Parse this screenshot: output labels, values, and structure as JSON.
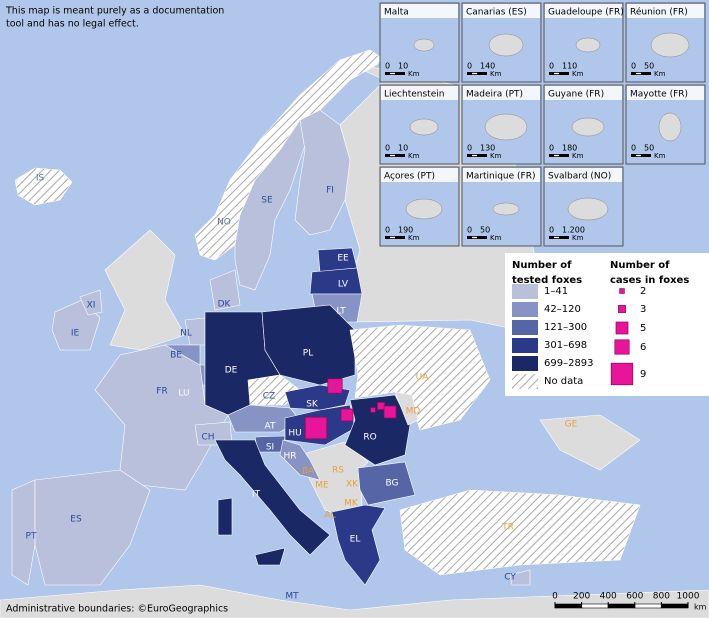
{
  "disclaimer": [
    "This map is meant purely as a documentation",
    "tool and has no legal effect."
  ],
  "attribution": "Administrative boundaries: ©EuroGeographics",
  "insets": [
    {
      "name": "Malta",
      "scale": [
        0,
        10
      ],
      "unit": "Km"
    },
    {
      "name": "Canarias (ES)",
      "scale": [
        0,
        140
      ],
      "unit": "Km"
    },
    {
      "name": "Guadeloupe (FR)",
      "scale": [
        0,
        110
      ],
      "unit": "Km"
    },
    {
      "name": "Réunion (FR)",
      "scale": [
        0,
        50
      ],
      "unit": "Km"
    },
    {
      "name": "Liechtenstein",
      "scale": [
        0,
        10
      ],
      "unit": "Km"
    },
    {
      "name": "Madeira (PT)",
      "scale": [
        0,
        130
      ],
      "unit": "Km"
    },
    {
      "name": "Guyane (FR)",
      "scale": [
        0,
        180
      ],
      "unit": "Km"
    },
    {
      "name": "Mayotte (FR)",
      "scale": [
        0,
        50
      ],
      "unit": "Km"
    },
    {
      "name": "Açores (PT)",
      "scale": [
        0,
        190
      ],
      "unit": "Km"
    },
    {
      "name": "Martinique (FR)",
      "scale": [
        0,
        50
      ],
      "unit": "Km"
    },
    {
      "name": "Svalbard (NO)",
      "scale": [
        0,
        {
          "value": 1200,
          "label": "1.200"
        }
      ],
      "unit": "Km"
    }
  ],
  "legend": {
    "tested_title": [
      "Number of",
      "tested foxes"
    ],
    "tested_classes": [
      {
        "label": "1–41",
        "color": "#b8c0dc"
      },
      {
        "label": "42–120",
        "color": "#8793c4"
      },
      {
        "label": "121–300",
        "color": "#5565a6"
      },
      {
        "label": "301–698",
        "color": "#2b3a88"
      },
      {
        "label": "699–2893",
        "color": "#1b2866"
      },
      {
        "label": "No data",
        "color": "url(#hatch)"
      }
    ],
    "cases_title": [
      "Number of",
      "cases in foxes"
    ],
    "cases": [
      2,
      3,
      5,
      6,
      9
    ]
  },
  "countries": [
    {
      "label": "IS",
      "class": 5
    },
    {
      "label": "NO",
      "class": 5
    },
    {
      "label": "SE",
      "class": 0
    },
    {
      "label": "FI",
      "class": 0
    },
    {
      "label": "EE",
      "class": 3
    },
    {
      "label": "LV",
      "class": 3
    },
    {
      "label": "LT",
      "class": 1
    },
    {
      "label": "DK",
      "class": 0
    },
    {
      "label": "IE",
      "class": 0
    },
    {
      "label": "XI",
      "class": 0
    },
    {
      "label": "NL",
      "class": 0
    },
    {
      "label": "BE",
      "class": 1
    },
    {
      "label": "LU",
      "class": 1
    },
    {
      "label": "DE",
      "class": 4
    },
    {
      "label": "PL",
      "class": 4
    },
    {
      "label": "CZ",
      "class": 5
    },
    {
      "label": "SK",
      "class": 3
    },
    {
      "label": "AT",
      "class": 1
    },
    {
      "label": "HU",
      "class": 3
    },
    {
      "label": "SI",
      "class": 2
    },
    {
      "label": "HR",
      "class": 1
    },
    {
      "label": "RO",
      "class": 4
    },
    {
      "label": "BG",
      "class": 2
    },
    {
      "label": "FR",
      "class": 0
    },
    {
      "label": "CH",
      "class": 0
    },
    {
      "label": "PT",
      "class": 0
    },
    {
      "label": "ES",
      "class": 0
    },
    {
      "label": "IT",
      "class": 4
    },
    {
      "label": "EL",
      "class": 3
    },
    {
      "label": "CY",
      "class": 0
    },
    {
      "label": "UA",
      "class": 5
    },
    {
      "label": "TR",
      "class": 5
    }
  ],
  "other_labels": [
    "MD",
    "BA",
    "RS",
    "ME",
    "XK",
    "MK",
    "AL",
    "GE",
    "MT"
  ],
  "case_markers": [
    6,
    9,
    5,
    2,
    3,
    5
  ],
  "scale_bar": {
    "ticks": [
      0,
      200,
      400,
      600,
      800,
      1000
    ],
    "unit": "km"
  }
}
